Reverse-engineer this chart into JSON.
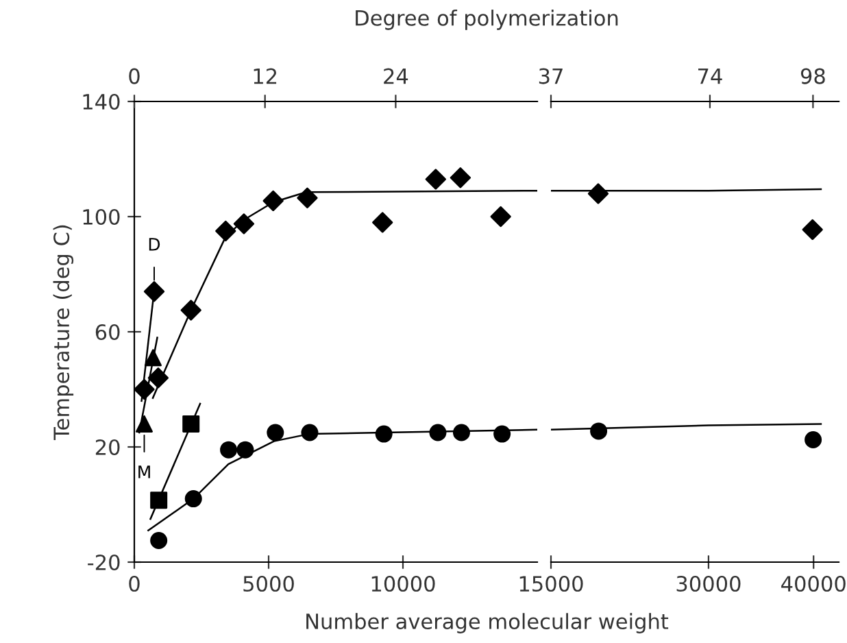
{
  "chart_data": [
    {
      "type": "scatter",
      "xlabel": "Number average molecular weight",
      "ylabel": "Temperature (deg C)",
      "x2label": "Degree of polymerization",
      "xlim": [
        0,
        15000
      ],
      "xticks": [
        0,
        5000,
        10000
      ],
      "x2lim": [
        0,
        37
      ],
      "x2ticks": [
        0,
        12,
        24
      ],
      "ylim": [
        -20,
        140
      ],
      "yticks": [
        -20,
        20,
        60,
        100,
        140
      ],
      "grid": false,
      "legend": false,
      "annotations": [
        {
          "text": "D",
          "x": 740,
          "y": 74
        },
        {
          "text": "M",
          "x": 370,
          "y": 28
        }
      ],
      "series": [
        {
          "marker": "diamond",
          "color": "#000000",
          "x": [
            370,
            740,
            890,
            2110,
            3400,
            4080,
            5170,
            6440,
            9240,
            11220,
            12140,
            13640
          ],
          "values": [
            40,
            74,
            44,
            67.5,
            95,
            97.5,
            105.5,
            106.5,
            98,
            113,
            113.5,
            100
          ]
        },
        {
          "marker": "circle",
          "color": "#000000",
          "x": [
            910,
            2200,
            3510,
            4130,
            5250,
            6530,
            9290,
            11300,
            12180,
            13690
          ],
          "values": [
            -12.5,
            2,
            19,
            19,
            25,
            25,
            24.5,
            25,
            25,
            24.5
          ]
        },
        {
          "marker": "square",
          "color": "#000000",
          "x": [
            910,
            2110
          ],
          "values": [
            1.5,
            28
          ]
        },
        {
          "marker": "triangle",
          "color": "#000000",
          "x": [
            370,
            700
          ],
          "values": [
            28,
            51
          ]
        },
        {
          "type": "line",
          "marker": "none",
          "color": "#000000",
          "x": [
            690,
            2110,
            3400,
            4100,
            5170,
            6400,
            15000
          ],
          "values": [
            37,
            67.5,
            93,
            99,
            105,
            108.5,
            109
          ]
        },
        {
          "type": "line",
          "marker": "none",
          "color": "#000000",
          "x": [
            520,
            2200,
            3500,
            5200,
            6500,
            9300,
            15000
          ],
          "values": [
            -9,
            2,
            14,
            22,
            24.5,
            25,
            26
          ]
        },
        {
          "type": "line",
          "marker": "none",
          "color": "#000000",
          "x": [
            185,
            855
          ],
          "values": [
            25,
            58
          ]
        },
        {
          "type": "line",
          "marker": "none",
          "color": "#000000",
          "x": [
            600,
            2450
          ],
          "values": [
            -5,
            35
          ]
        },
        {
          "type": "line",
          "marker": "none",
          "color": "#000000",
          "x": [
            270,
            760
          ],
          "values": [
            36,
            76
          ]
        }
      ]
    },
    {
      "type": "scatter",
      "xlim": [
        15000,
        42400
      ],
      "xticks": [
        15000,
        30000,
        40000
      ],
      "x2lim": [
        37,
        104
      ],
      "x2ticks": [
        37,
        74,
        98
      ],
      "ylim": [
        -20,
        140
      ],
      "tick_labels": "x",
      "grid": false,
      "legend": false,
      "series": [
        {
          "marker": "diamond",
          "color": "#000000",
          "x": [
            19500,
            39900
          ],
          "values": [
            108,
            95.5
          ]
        },
        {
          "marker": "circle",
          "color": "#000000",
          "x": [
            19540,
            39960
          ],
          "values": [
            25.5,
            22.5
          ]
        },
        {
          "type": "line",
          "marker": "none",
          "color": "#000000",
          "x": [
            15000,
            30000,
            40700
          ],
          "values": [
            109,
            109,
            109.5
          ]
        },
        {
          "type": "line",
          "marker": "none",
          "color": "#000000",
          "x": [
            15000,
            30000,
            40700
          ],
          "values": [
            26,
            27.5,
            28
          ]
        }
      ]
    }
  ]
}
